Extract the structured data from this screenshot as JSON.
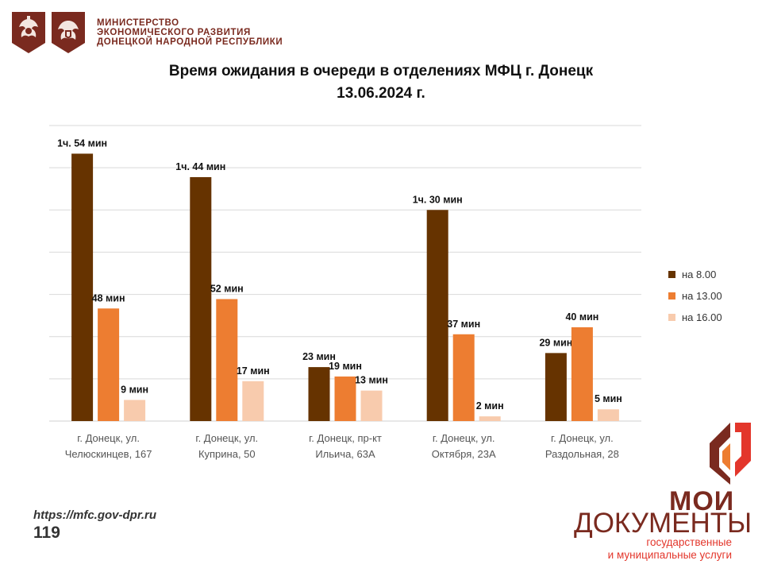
{
  "header": {
    "ministry_lines": [
      "МИНИСТЕРСТВО",
      "ЭКОНОМИЧЕСКОГО РАЗВИТИЯ",
      "ДОНЕЦКОЙ НАРОДНОЙ РЕСПУБЛИКИ"
    ]
  },
  "colors": {
    "series_8": "#663300",
    "series_13": "#ed7d31",
    "series_16": "#f8cbad",
    "brand": "#7a2a1f",
    "brand_accent": "#e3362b"
  },
  "footer": {
    "url": "https://mfc.gov-dpr.ru",
    "page_number": "119"
  },
  "brand": {
    "line1": "МОИ",
    "line2": "ДОКУМЕНТЫ",
    "sub1": "государственные",
    "sub2": "и муниципальные услуги"
  },
  "chart_data": {
    "type": "bar",
    "title": "Время ожидания в очереди в отделениях МФЦ г. Донецк",
    "subtitle": "13.06.2024 г.",
    "unit": "минуты",
    "categories": [
      [
        "г. Донецк, ул.",
        "Челюскинцев, 167"
      ],
      [
        "г. Донецк, ул.",
        "Куприна, 50"
      ],
      [
        "г. Донецк, пр-кт",
        "Ильича, 63А"
      ],
      [
        "г. Донецк, ул.",
        "Октября, 23А"
      ],
      [
        "г. Донецк, ул.",
        "Раздольная, 28"
      ]
    ],
    "series": [
      {
        "name": "на 8.00",
        "values": [
          114,
          104,
          23,
          90,
          29
        ],
        "labels": [
          "1ч. 54 мин",
          "1ч. 44 мин",
          "23 мин",
          "1ч. 30 мин",
          "29 мин"
        ]
      },
      {
        "name": "на 13.00",
        "values": [
          48,
          52,
          19,
          37,
          40
        ],
        "labels": [
          "48 мин",
          "52 мин",
          "19 мин",
          "37 мин",
          "40 мин"
        ]
      },
      {
        "name": "на 16.00",
        "values": [
          9,
          17,
          13,
          2,
          5
        ],
        "labels": [
          "9 мин",
          "17 мин",
          "13 мин",
          "2 мин",
          "5 мин"
        ]
      }
    ],
    "grid": true,
    "legend_position": "right"
  }
}
